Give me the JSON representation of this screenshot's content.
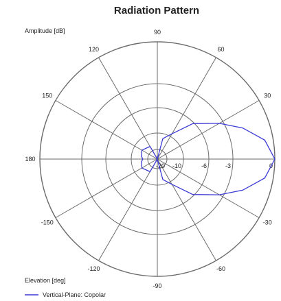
{
  "chart_data": {
    "type": "polar",
    "title": "Radiation Pattern",
    "radial_label": "Amplitude [dB]",
    "angular_label": "Elevation [deg]",
    "radial_ticks": [
      "-20",
      "-10",
      "-6",
      "-3",
      "0"
    ],
    "radial_values": [
      -20,
      -10,
      -6,
      -3,
      0
    ],
    "angular_ticks": [
      {
        "angle": 0,
        "label": "0"
      },
      {
        "angle": 30,
        "label": "30"
      },
      {
        "angle": 60,
        "label": "60"
      },
      {
        "angle": 90,
        "label": "90"
      },
      {
        "angle": 120,
        "label": "120"
      },
      {
        "angle": 150,
        "label": "150"
      },
      {
        "angle": 180,
        "label": "180"
      },
      {
        "angle": -150,
        "label": "-150"
      },
      {
        "angle": -120,
        "label": "-120"
      },
      {
        "angle": -90,
        "label": "-90"
      },
      {
        "angle": -60,
        "label": "-60"
      },
      {
        "angle": -30,
        "label": "-30"
      }
    ],
    "series": [
      {
        "name": "Vertical-Plane: Copolar",
        "color": "#3a3ad6",
        "angles_deg": [
          -90,
          -75,
          -60,
          -45,
          -30,
          -20,
          -10,
          0,
          10,
          20,
          30,
          45,
          60,
          75,
          90
        ],
        "amplitude_db": [
          -20,
          -13,
          -9.5,
          -6.2,
          -3.5,
          -1.9,
          -0.6,
          0,
          -0.6,
          -1.9,
          -3.5,
          -6.2,
          -9.5,
          -13,
          -20
        ]
      }
    ],
    "grid": true,
    "legend_position": "bottom-left"
  }
}
